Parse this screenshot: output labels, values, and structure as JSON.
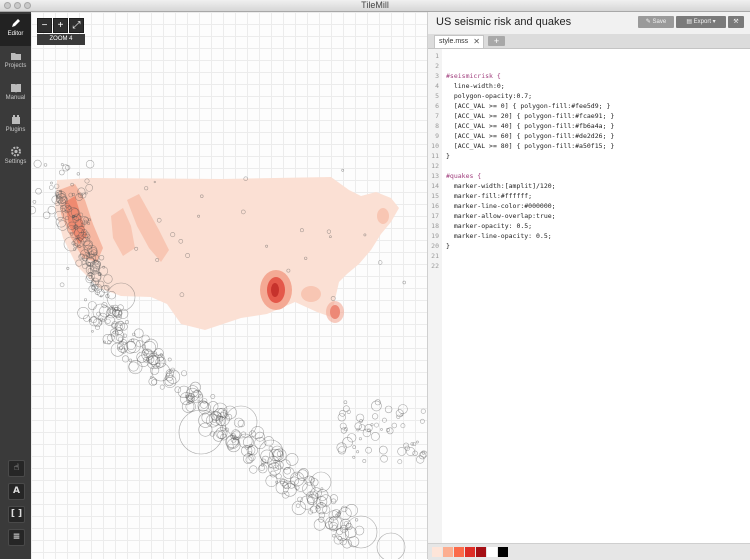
{
  "app": {
    "title": "TileMill"
  },
  "sidebar": {
    "items": [
      {
        "label": "Editor",
        "icon": "pencil-icon"
      },
      {
        "label": "Projects",
        "icon": "folder-icon"
      },
      {
        "label": "Manual",
        "icon": "book-icon"
      },
      {
        "label": "Plugins",
        "icon": "plugin-icon"
      },
      {
        "label": "Settings",
        "icon": "gear-icon"
      }
    ],
    "tools": [
      {
        "glyph": "☝",
        "icon": "pointer-tool-icon"
      },
      {
        "glyph": "A",
        "icon": "font-tool-icon"
      },
      {
        "glyph": "[ ]",
        "icon": "bracket-tool-icon"
      },
      {
        "glyph": "≡",
        "icon": "layers-tool-icon"
      }
    ]
  },
  "map": {
    "zoom_out": "−",
    "zoom_in": "+",
    "fullscreen": "⤢",
    "zoom_label": "ZOOM 4"
  },
  "editor": {
    "project_title": "US seismic risk and quakes",
    "save_label": "Save",
    "export_label": "Export",
    "tab_label": "style.mss",
    "tab_close": "✕",
    "add_tab": "+",
    "line_numbers": [
      "1",
      "2",
      "3",
      "4",
      "5",
      "6",
      "7",
      "8",
      "9",
      "10",
      "11",
      "12",
      "13",
      "14",
      "15",
      "16",
      "17",
      "18",
      "19",
      "20",
      "21",
      "22"
    ],
    "lines": [
      "",
      "",
      "#seismicrisk {",
      "  line-width:0;",
      "  polygon-opacity:0.7;",
      "  [ACC_VAL >= 0] { polygon-fill:#fee5d9; }",
      "  [ACC_VAL >= 20] { polygon-fill:#fcae91; }",
      "  [ACC_VAL >= 40] { polygon-fill:#fb6a4a; }",
      "  [ACC_VAL >= 60] { polygon-fill:#de2d26; }",
      "  [ACC_VAL >= 80] { polygon-fill:#a50f15; }",
      "}",
      "",
      "#quakes {",
      "  marker-width:[amplit]/120;",
      "  marker-fill:#ffffff;",
      "  marker-line-color:#000000;",
      "  marker-allow-overlap:true;",
      "  marker-opacity: 0.5;",
      "  marker-line-opacity: 0.5;",
      "}",
      "",
      ""
    ]
  },
  "palette": [
    "#fee5d9",
    "#fcae91",
    "#fb6a4a",
    "#de2d26",
    "#a50f15",
    "#ffffff",
    "#000000"
  ]
}
